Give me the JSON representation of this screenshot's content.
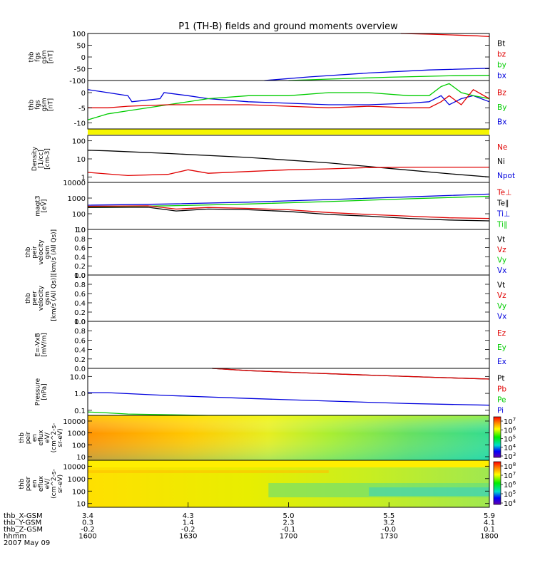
{
  "title": "P1 (TH-B) fields and ground moments overview",
  "colors": {
    "black": "#000000",
    "red": "#e00000",
    "green": "#00cc00",
    "blue": "#0000dd",
    "yellow": "#f5f500"
  },
  "chart_data": [
    {
      "type": "line",
      "id": "fgs_gsm_high",
      "ylabel_lines": [
        "thb",
        "fgs",
        "gsm",
        "[nT]"
      ],
      "yticks": [
        "100",
        "50",
        "0",
        "-50",
        "-100"
      ],
      "ylim": [
        -100,
        100
      ],
      "legend": [
        {
          "label": "Bt",
          "color": "black"
        },
        {
          "label": "bz",
          "color": "red"
        },
        {
          "label": "by",
          "color": "green"
        },
        {
          "label": "bx",
          "color": "blue"
        }
      ],
      "series": [
        {
          "name": "bz",
          "color": "red",
          "x": [
            0.78,
            0.85,
            0.92,
            0.97,
            1.0
          ],
          "y": [
            100,
            97,
            93,
            90,
            87
          ]
        },
        {
          "name": "bx",
          "color": "blue",
          "x": [
            0.44,
            0.55,
            0.7,
            0.85,
            1.0
          ],
          "y": [
            -100,
            -85,
            -68,
            -55,
            -48
          ]
        },
        {
          "name": "by",
          "color": "green",
          "x": [
            0.5,
            0.6,
            0.75,
            0.9,
            1.0
          ],
          "y": [
            -100,
            -94,
            -86,
            -80,
            -78
          ]
        }
      ]
    },
    {
      "type": "line",
      "id": "fgs_gsm_low",
      "ylabel_lines": [
        "thb",
        "fgs",
        "gsm",
        "[nT]"
      ],
      "yticks": [
        "0",
        "-5",
        "-10"
      ],
      "ylim": [
        -12,
        4
      ],
      "legend": [
        {
          "label": "Bz",
          "color": "red"
        },
        {
          "label": "By",
          "color": "green"
        },
        {
          "label": "Bx",
          "color": "blue"
        }
      ],
      "series": [
        {
          "name": "Bx",
          "color": "blue",
          "x": [
            0,
            0.05,
            0.1,
            0.11,
            0.18,
            0.19,
            0.25,
            0.3,
            0.4,
            0.5,
            0.6,
            0.7,
            0.8,
            0.85,
            0.88,
            0.9,
            0.93,
            0.96,
            1.0
          ],
          "y": [
            1,
            0,
            -1,
            -3,
            -2,
            0,
            -1,
            -2,
            -3,
            -3.5,
            -4,
            -4,
            -3.5,
            -3,
            -1,
            -4,
            -2,
            -1,
            -3
          ]
        },
        {
          "name": "By",
          "color": "green",
          "x": [
            0,
            0.05,
            0.1,
            0.2,
            0.3,
            0.4,
            0.5,
            0.6,
            0.7,
            0.8,
            0.85,
            0.88,
            0.9,
            0.93,
            0.96,
            1.0
          ],
          "y": [
            -9,
            -7,
            -6,
            -4,
            -2,
            -1,
            -1,
            0,
            0,
            -1,
            -1,
            2,
            3,
            0,
            -1,
            -2
          ]
        },
        {
          "name": "Bz",
          "color": "red",
          "x": [
            0,
            0.05,
            0.1,
            0.2,
            0.3,
            0.4,
            0.5,
            0.6,
            0.7,
            0.8,
            0.85,
            0.88,
            0.9,
            0.93,
            0.96,
            1.0
          ],
          "y": [
            -5,
            -5,
            -4.5,
            -4,
            -4,
            -4,
            -4.5,
            -5,
            -4.5,
            -5,
            -5,
            -3,
            -1,
            -4,
            1,
            -2
          ]
        }
      ]
    },
    {
      "type": "line",
      "id": "density",
      "ylabel_lines": [
        "Density",
        "[1/cc]",
        "[cm-3]"
      ],
      "yticks": [
        "100",
        "10",
        "1"
      ],
      "yscale": "log",
      "ylim": [
        0.5,
        200
      ],
      "legend": [
        {
          "label": "Ne",
          "color": "red"
        },
        {
          "label": "Ni",
          "color": "black"
        },
        {
          "label": "Npot",
          "color": "blue"
        }
      ],
      "series": [
        {
          "name": "Ni",
          "color": "black",
          "x": [
            0,
            0.05,
            0.2,
            0.4,
            0.6,
            0.75,
            0.9,
            1.0
          ],
          "y": [
            30,
            28,
            20,
            12,
            6,
            3,
            1.5,
            1
          ]
        },
        {
          "name": "Ne",
          "color": "red",
          "x": [
            0,
            0.1,
            0.2,
            0.25,
            0.3,
            0.4,
            0.5,
            0.6,
            0.7,
            0.8,
            1.0
          ],
          "y": [
            1.8,
            1.2,
            1.4,
            2.5,
            1.6,
            2,
            2.5,
            2.8,
            3.3,
            3.5,
            3.5
          ]
        }
      ]
    },
    {
      "type": "line",
      "id": "temperature",
      "ylabel_lines": [
        "magt3",
        "[eV]"
      ],
      "yticks": [
        "10000",
        "1000",
        "100",
        "10"
      ],
      "yscale": "log",
      "ylim": [
        10,
        10000
      ],
      "legend": [
        {
          "label": "Te⊥",
          "color": "red"
        },
        {
          "label": "Te∥",
          "color": "black"
        },
        {
          "label": "Ti⊥",
          "color": "blue"
        },
        {
          "label": "Ti∥",
          "color": "green"
        }
      ],
      "series": [
        {
          "name": "Ti⊥",
          "color": "blue",
          "x": [
            0,
            0.2,
            0.4,
            0.6,
            0.8,
            1.0
          ],
          "y": [
            350,
            420,
            550,
            800,
            1200,
            1800
          ]
        },
        {
          "name": "Ti∥",
          "color": "green",
          "x": [
            0,
            0.2,
            0.4,
            0.6,
            0.8,
            1.0
          ],
          "y": [
            280,
            320,
            420,
            600,
            900,
            1300
          ]
        },
        {
          "name": "Te⊥",
          "color": "red",
          "x": [
            0,
            0.15,
            0.22,
            0.3,
            0.4,
            0.5,
            0.6,
            0.7,
            0.8,
            0.9,
            1.0
          ],
          "y": [
            300,
            320,
            200,
            250,
            220,
            180,
            120,
            90,
            70,
            55,
            50
          ]
        },
        {
          "name": "Te∥",
          "color": "black",
          "x": [
            0,
            0.15,
            0.22,
            0.3,
            0.4,
            0.5,
            0.6,
            0.7,
            0.8,
            0.9,
            1.0
          ],
          "y": [
            250,
            260,
            150,
            200,
            180,
            140,
            90,
            70,
            50,
            40,
            35
          ]
        }
      ]
    },
    {
      "type": "line",
      "id": "peir_velocity",
      "ylabel_lines": [
        "thb",
        "peir",
        "velocity",
        "gsm",
        "[km/s (All Qs)]"
      ],
      "yticks": [
        "1.0",
        "0.8",
        "0.6",
        "0.4",
        "0.2",
        "0.0"
      ],
      "ylim": [
        0,
        1
      ],
      "legend": [
        {
          "label": "Vt",
          "color": "black"
        },
        {
          "label": "Vz",
          "color": "red"
        },
        {
          "label": "Vy",
          "color": "green"
        },
        {
          "label": "Vx",
          "color": "blue"
        }
      ],
      "series": []
    },
    {
      "type": "line",
      "id": "peer_velocity",
      "ylabel_lines": [
        "thb",
        "peer",
        "velocity",
        "gsm",
        "[km/s (All Qs)]"
      ],
      "yticks": [
        "1.0",
        "0.8",
        "0.6",
        "0.4",
        "0.2",
        "0.0"
      ],
      "ylim": [
        0,
        1
      ],
      "legend": [
        {
          "label": "Vt",
          "color": "black"
        },
        {
          "label": "Vz",
          "color": "red"
        },
        {
          "label": "Vy",
          "color": "green"
        },
        {
          "label": "Vx",
          "color": "blue"
        }
      ],
      "series": []
    },
    {
      "type": "line",
      "id": "efield",
      "ylabel_lines": [
        "E=-VxB",
        "[mV/m]"
      ],
      "yticks": [
        "1.0",
        "0.8",
        "0.6",
        "0.4",
        "0.2",
        "0.0"
      ],
      "ylim": [
        0,
        1
      ],
      "legend": [
        {
          "label": "Ez",
          "color": "red"
        },
        {
          "label": "Ey",
          "color": "green"
        },
        {
          "label": "Ex",
          "color": "blue"
        }
      ],
      "series": []
    },
    {
      "type": "line",
      "id": "pressure",
      "ylabel_lines": [
        "Pressure",
        "[nPa]"
      ],
      "yticks": [
        "10.0",
        "1.0",
        "0.1"
      ],
      "yscale": "log",
      "ylim": [
        0.05,
        30
      ],
      "legend": [
        {
          "label": "Pt",
          "color": "black"
        },
        {
          "label": "Pb",
          "color": "red"
        },
        {
          "label": "Pe",
          "color": "green"
        },
        {
          "label": "Pi",
          "color": "blue"
        }
      ],
      "series": [
        {
          "name": "Pi",
          "color": "blue",
          "x": [
            0,
            0.05,
            0.2,
            0.4,
            0.6,
            0.8,
            1.0
          ],
          "y": [
            1.1,
            1.1,
            0.75,
            0.5,
            0.35,
            0.25,
            0.2
          ]
        },
        {
          "name": "Pe",
          "color": "green",
          "x": [
            0,
            0.05,
            0.1,
            0.3,
            0.6,
            1.0
          ],
          "y": [
            0.08,
            0.07,
            0.06,
            0.05,
            0.05,
            0.05
          ]
        },
        {
          "name": "Pt",
          "color": "black",
          "x": [
            0.31,
            0.4,
            0.55,
            0.7,
            0.85,
            1.0
          ],
          "y": [
            30,
            22,
            16,
            12,
            9,
            7
          ]
        },
        {
          "name": "Pb",
          "color": "red",
          "x": [
            0.31,
            0.4,
            0.55,
            0.7,
            0.85,
            1.0
          ],
          "y": [
            30,
            22,
            16,
            12,
            9,
            7
          ]
        }
      ]
    },
    {
      "type": "heatmap",
      "id": "peir_efluxes",
      "ylabel_lines": [
        "thb",
        "peir",
        "en",
        "eflux",
        "eV/",
        "(cm^2-s-",
        "sr-eV)"
      ],
      "yticks": [
        "10000",
        "1000",
        "100",
        "10"
      ],
      "yscale": "log",
      "ylim": [
        5,
        30000
      ],
      "colorbar_ticks": [
        "10^7",
        "10^6",
        "10^5",
        "10^4",
        "10^3"
      ]
    },
    {
      "type": "heatmap",
      "id": "peer_efluxes",
      "ylabel_lines": [
        "thb",
        "peer",
        "en",
        "eflux",
        "eV/",
        "(cm^2-s-",
        "sr-eV)"
      ],
      "yticks": [
        "10000",
        "1000",
        "100",
        "10"
      ],
      "yscale": "log",
      "ylim": [
        5,
        30000
      ],
      "colorbar_ticks": [
        "10^8",
        "10^7",
        "10^6",
        "10^5",
        "10^4"
      ]
    }
  ],
  "x_axis": {
    "row_labels": [
      "thb_X-GSM",
      "thb_Y-GSM",
      "thb_Z-GSM",
      "hhmm",
      "2007 May 09"
    ],
    "columns": [
      {
        "x": 0,
        "X": "3.4",
        "Y": "0.3",
        "Z": "-0.2",
        "hhmm": "1600"
      },
      {
        "x": 0.25,
        "X": "4.3",
        "Y": "1.4",
        "Z": "-0.2",
        "hhmm": "1630"
      },
      {
        "x": 0.5,
        "X": "5.0",
        "Y": "2.3",
        "Z": "-0.1",
        "hhmm": "1700"
      },
      {
        "x": 0.75,
        "X": "5.5",
        "Y": "3.2",
        "Z": "-0.0",
        "hhmm": "1730"
      },
      {
        "x": 1.0,
        "X": "5.9",
        "Y": "4.1",
        "Z": "0.1",
        "hhmm": "1800"
      }
    ]
  }
}
